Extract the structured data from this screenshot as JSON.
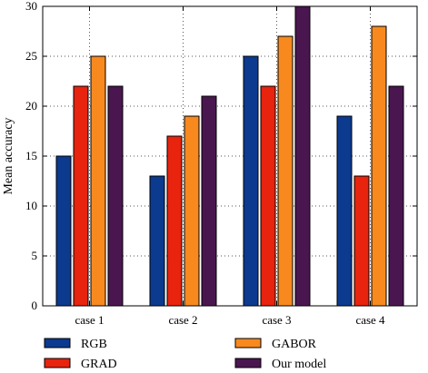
{
  "chart_data": {
    "type": "bar",
    "categories": [
      "case 1",
      "case 2",
      "case 3",
      "case 4"
    ],
    "series": [
      {
        "name": "RGB",
        "values": [
          15,
          13,
          25,
          19
        ],
        "color": "#0b3a8f"
      },
      {
        "name": "GRAD",
        "values": [
          22,
          17,
          22,
          13
        ],
        "color": "#e8230e"
      },
      {
        "name": "GABOR",
        "values": [
          25,
          19,
          27,
          28
        ],
        "color": "#f7891f"
      },
      {
        "name": "Our model",
        "values": [
          22,
          21,
          30,
          22
        ],
        "color": "#4a1650"
      }
    ],
    "xlabel": "",
    "ylabel": "Mean accuracy",
    "ylim": [
      0,
      30
    ],
    "yticks": [
      "0",
      "5",
      "10",
      "15",
      "20",
      "25",
      "30"
    ],
    "grid": true,
    "legend_position": "bottom"
  }
}
